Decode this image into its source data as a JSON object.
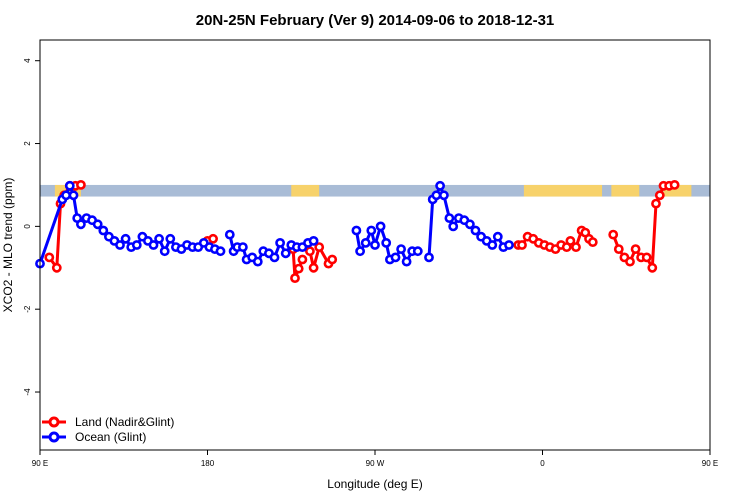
{
  "chart_data": {
    "type": "line",
    "title": "20N-25N February (Ver 9)   2014-09-06 to 2018-12-31",
    "xlabel": "Longitude (deg E)",
    "ylabel": "XCO2 - MLO trend (ppm)",
    "xlim": [
      90,
      450
    ],
    "ylim": [
      -5.4,
      4.5
    ],
    "x_ticks": [
      {
        "value": 90,
        "label": "90 E"
      },
      {
        "value": 180,
        "label": "180"
      },
      {
        "value": 270,
        "label": "90 W"
      },
      {
        "value": 360,
        "label": "0"
      },
      {
        "value": 450,
        "label": "90 E"
      },
      {
        "value": 540,
        "label": "180"
      }
    ],
    "y_ticks": [
      {
        "value": -4,
        "label": "-4"
      },
      {
        "value": -2,
        "label": "-2"
      },
      {
        "value": 0,
        "label": "0"
      },
      {
        "value": 2,
        "label": "2"
      },
      {
        "value": 4,
        "label": "4"
      }
    ],
    "map_strip": {
      "y_from": 0.72,
      "y_to": 1.0,
      "ocean_color": "#a9bcd6",
      "land_color": "#f7d26b"
    },
    "legend_position": "bottom-left",
    "series": [
      {
        "name": "Land (Nadir&Glint)",
        "color": "#ff0000",
        "segments": [
          [
            [
              95,
              -0.75
            ],
            [
              99,
              -1.0
            ],
            [
              101,
              0.55
            ],
            [
              103,
              0.75
            ],
            [
              106,
              0.98
            ],
            [
              109,
              0.98
            ],
            [
              112,
              1.0
            ]
          ],
          [
            [
              180,
              -0.35
            ],
            [
              183,
              -0.3
            ]
          ],
          [
            [
              226,
              -0.55
            ],
            [
              227,
              -1.25
            ],
            [
              229,
              -1.02
            ],
            [
              231,
              -0.8
            ]
          ],
          [
            [
              235,
              -0.6
            ],
            [
              237,
              -1.0
            ],
            [
              240,
              -0.5
            ],
            [
              245,
              -0.9
            ],
            [
              247,
              -0.8
            ]
          ],
          [
            [
              347,
              -0.45
            ],
            [
              349,
              -0.45
            ],
            [
              352,
              -0.25
            ],
            [
              355,
              -0.3
            ],
            [
              358,
              -0.4
            ],
            [
              361,
              -0.45
            ],
            [
              364,
              -0.5
            ],
            [
              367,
              -0.55
            ],
            [
              370,
              -0.45
            ],
            [
              373,
              -0.5
            ],
            [
              375,
              -0.35
            ],
            [
              378,
              -0.5
            ],
            [
              381,
              -0.1
            ],
            [
              383,
              -0.15
            ],
            [
              385,
              -0.3
            ],
            [
              387,
              -0.38
            ]
          ],
          [
            [
              398,
              -0.2
            ],
            [
              401,
              -0.55
            ],
            [
              404,
              -0.75
            ],
            [
              407,
              -0.85
            ],
            [
              410,
              -0.55
            ],
            [
              413,
              -0.75
            ],
            [
              416,
              -0.75
            ],
            [
              419,
              -1.0
            ],
            [
              421,
              0.55
            ],
            [
              423,
              0.75
            ],
            [
              425,
              0.98
            ],
            [
              428,
              0.98
            ],
            [
              431,
              1.0
            ]
          ]
        ]
      },
      {
        "name": "Ocean (Glint)",
        "color": "#0000ff",
        "segments": [
          [
            [
              90,
              -0.9
            ],
            [
              102,
              0.65
            ],
            [
              104,
              0.75
            ],
            [
              106,
              0.98
            ],
            [
              108,
              0.75
            ],
            [
              110,
              0.2
            ],
            [
              112,
              0.05
            ],
            [
              115,
              0.2
            ],
            [
              118,
              0.15
            ],
            [
              121,
              0.05
            ],
            [
              124,
              -0.1
            ],
            [
              127,
              -0.25
            ],
            [
              130,
              -0.35
            ],
            [
              133,
              -0.45
            ],
            [
              136,
              -0.3
            ],
            [
              139,
              -0.5
            ],
            [
              142,
              -0.45
            ],
            [
              145,
              -0.25
            ],
            [
              148,
              -0.35
            ],
            [
              151,
              -0.45
            ],
            [
              154,
              -0.3
            ],
            [
              157,
              -0.6
            ],
            [
              160,
              -0.3
            ],
            [
              163,
              -0.5
            ],
            [
              166,
              -0.55
            ],
            [
              169,
              -0.45
            ],
            [
              172,
              -0.5
            ],
            [
              175,
              -0.5
            ],
            [
              178,
              -0.4
            ],
            [
              181,
              -0.5
            ],
            [
              184,
              -0.55
            ],
            [
              187,
              -0.6
            ]
          ],
          [
            [
              192,
              -0.2
            ],
            [
              194,
              -0.6
            ],
            [
              196,
              -0.5
            ],
            [
              199,
              -0.5
            ],
            [
              201,
              -0.8
            ],
            [
              204,
              -0.75
            ],
            [
              207,
              -0.85
            ],
            [
              210,
              -0.6
            ],
            [
              213,
              -0.65
            ],
            [
              216,
              -0.75
            ],
            [
              219,
              -0.4
            ],
            [
              222,
              -0.65
            ],
            [
              225,
              -0.45
            ],
            [
              228,
              -0.5
            ],
            [
              231,
              -0.5
            ],
            [
              234,
              -0.4
            ],
            [
              237,
              -0.35
            ]
          ],
          [
            [
              260,
              -0.1
            ],
            [
              262,
              -0.6
            ],
            [
              265,
              -0.4
            ],
            [
              268,
              -0.1
            ],
            [
              270,
              -0.45
            ],
            [
              273,
              0.0
            ],
            [
              276,
              -0.4
            ],
            [
              278,
              -0.8
            ],
            [
              281,
              -0.75
            ],
            [
              284,
              -0.55
            ],
            [
              287,
              -0.85
            ],
            [
              290,
              -0.6
            ],
            [
              293,
              -0.6
            ]
          ],
          [
            [
              299,
              -0.75
            ],
            [
              301,
              0.65
            ],
            [
              303,
              0.75
            ],
            [
              305,
              0.98
            ],
            [
              307,
              0.75
            ],
            [
              310,
              0.2
            ],
            [
              312,
              0.0
            ],
            [
              315,
              0.2
            ],
            [
              318,
              0.15
            ],
            [
              321,
              0.05
            ],
            [
              324,
              -0.1
            ],
            [
              327,
              -0.25
            ],
            [
              330,
              -0.35
            ],
            [
              333,
              -0.45
            ],
            [
              336,
              -0.25
            ],
            [
              339,
              -0.5
            ],
            [
              342,
              -0.45
            ]
          ]
        ]
      }
    ]
  }
}
